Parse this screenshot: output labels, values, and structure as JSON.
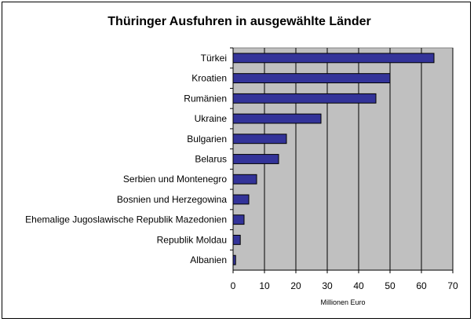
{
  "chart_data": {
    "type": "bar",
    "orientation": "horizontal",
    "title": "Thüringer Ausfuhren in ausgewählte Länder",
    "xlabel": "Millionen Euro",
    "ylabel": "",
    "xlim": [
      0,
      70
    ],
    "ticks": [
      0,
      10,
      20,
      30,
      40,
      50,
      60,
      70
    ],
    "grid": true,
    "categories": [
      "Türkei",
      "Kroatien",
      "Rumänien",
      "Ukraine",
      "Bulgarien",
      "Belarus",
      "Serbien und Montenegro",
      "Bosnien und Herzegowina",
      "Ehemalige Jugoslawische Republik Mazedonien",
      "Republik Moldau",
      "Albanien"
    ],
    "values": [
      64,
      50,
      45.5,
      28,
      17,
      14.5,
      7.5,
      5,
      3.5,
      2.3,
      0.8
    ],
    "colors": {
      "bar": "#333399",
      "plot_background": "#c0c0c0",
      "gridline": "#000000"
    }
  }
}
